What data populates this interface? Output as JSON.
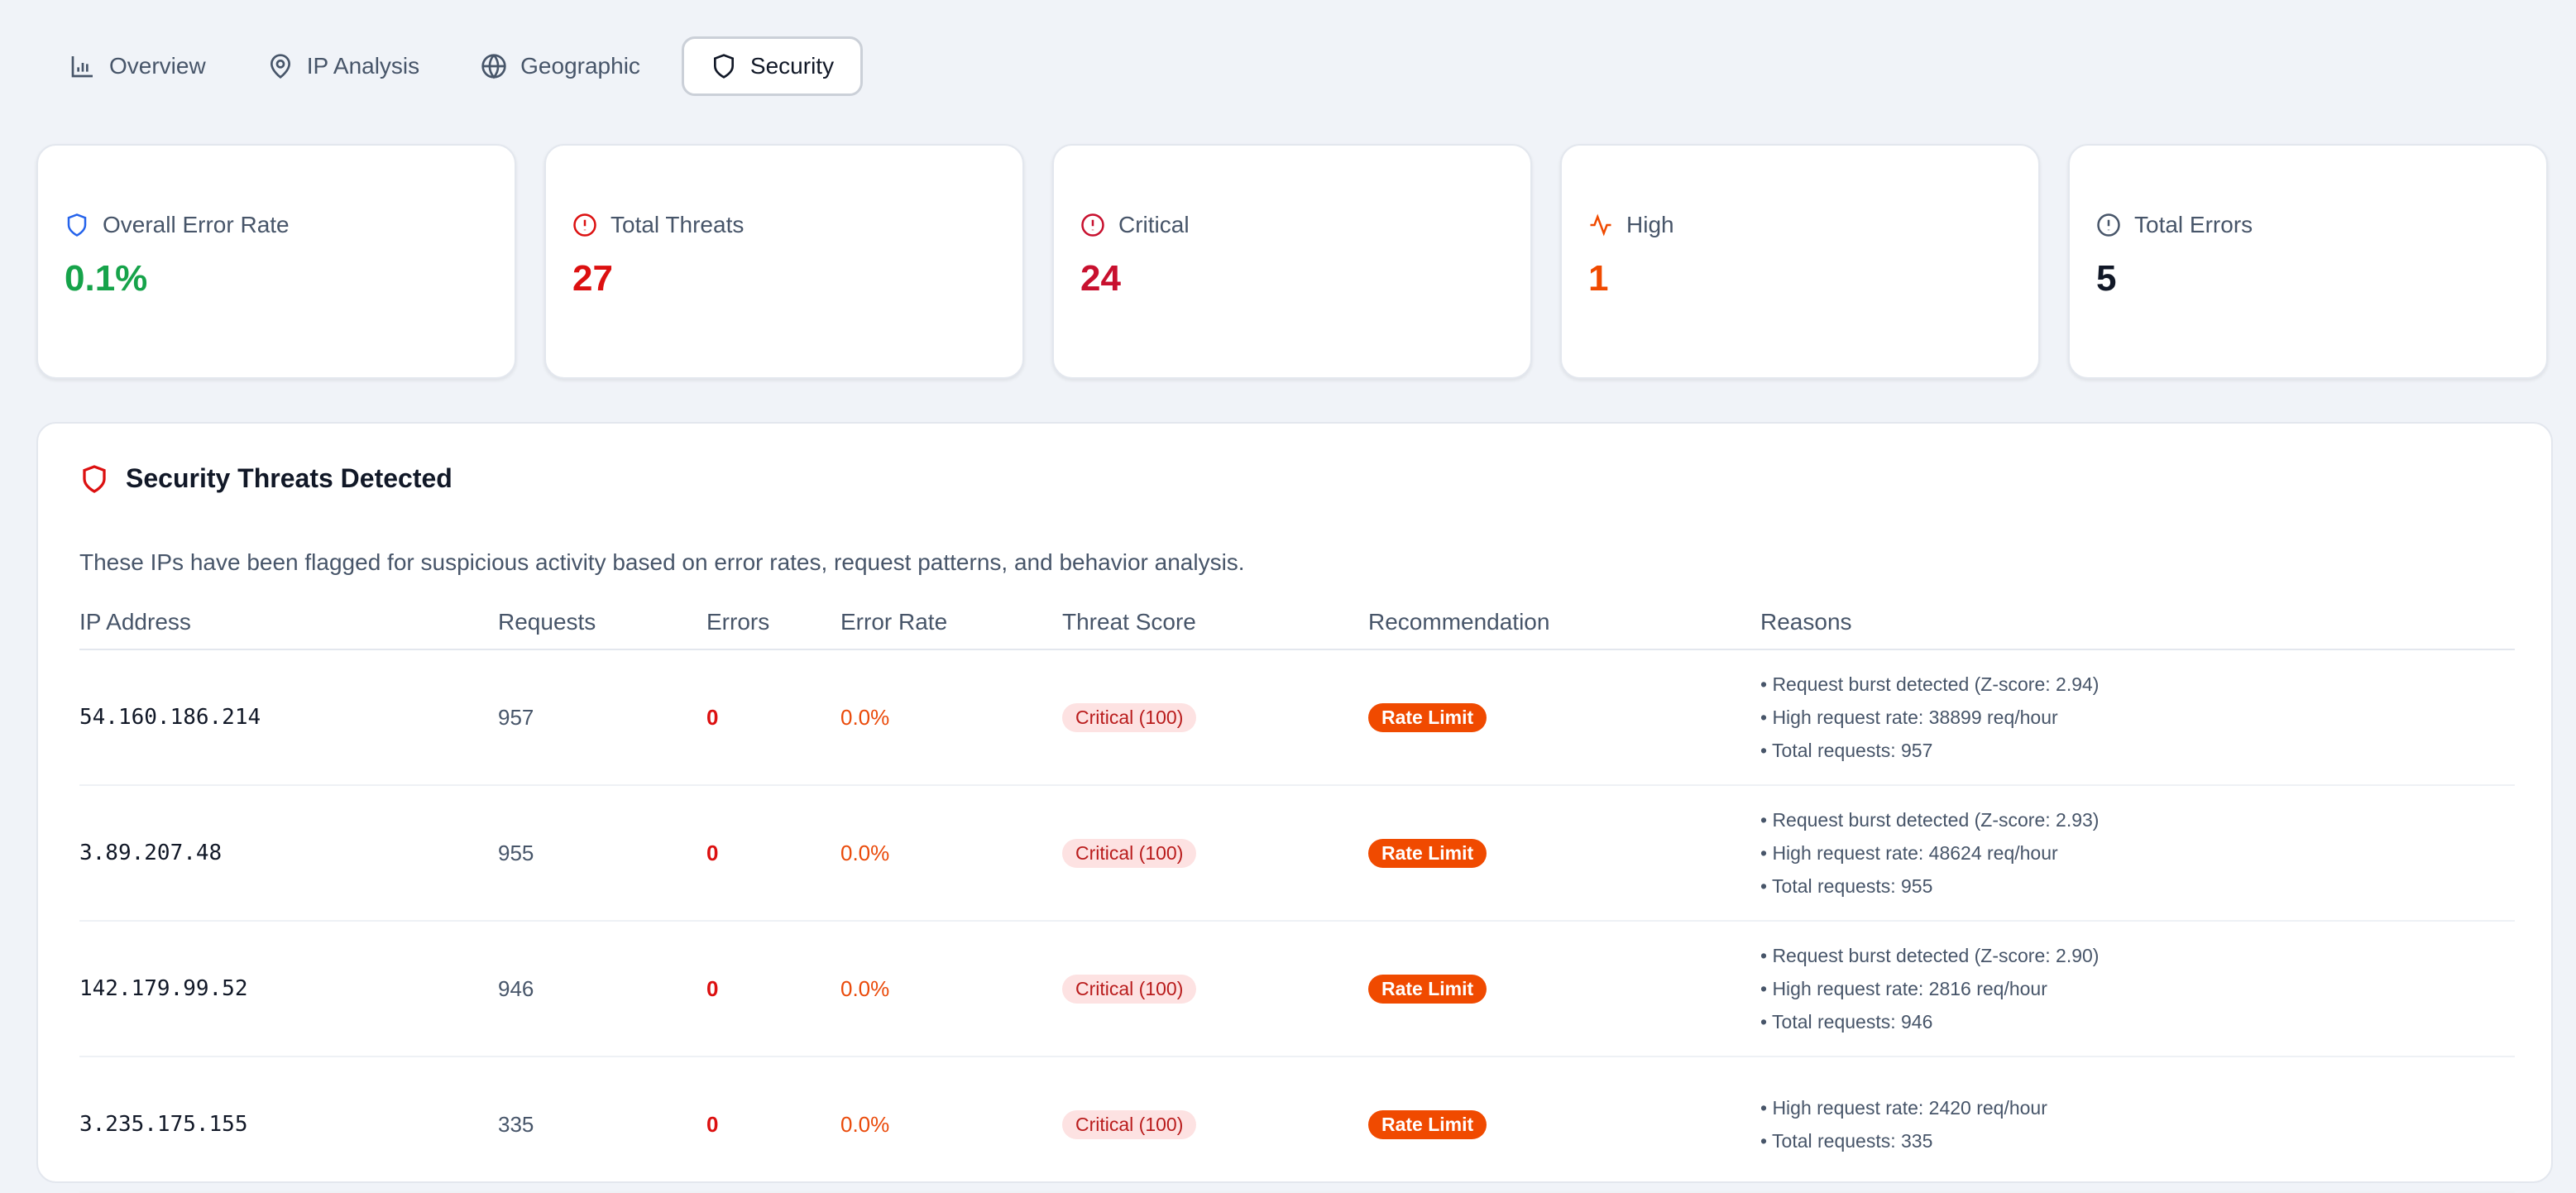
{
  "tabs": [
    {
      "label": "Overview",
      "icon": "bar-chart-icon"
    },
    {
      "label": "IP Analysis",
      "icon": "map-pin-icon"
    },
    {
      "label": "Geographic",
      "icon": "globe-icon"
    },
    {
      "label": "Security",
      "icon": "shield-icon",
      "active": true
    }
  ],
  "cards": [
    {
      "label": "Overall Error Rate",
      "value": "0.1%",
      "icon": "shield-icon",
      "color": "#16a34a",
      "icon_color": "#2563eb"
    },
    {
      "label": "Total Threats",
      "value": "27",
      "icon": "alert-circle-icon",
      "color": "#dc1010",
      "icon_color": "#dc1010"
    },
    {
      "label": "Critical",
      "value": "24",
      "icon": "alert-circle-icon",
      "color": "#c8102e",
      "icon_color": "#c8102e"
    },
    {
      "label": "High",
      "value": "1",
      "icon": "activity-icon",
      "color": "#f04a00",
      "icon_color": "#f04a00"
    },
    {
      "label": "Total Errors",
      "value": "5",
      "icon": "alert-circle-icon",
      "color": "#111827",
      "icon_color": "#475569"
    }
  ],
  "panel": {
    "title": "Security Threats Detected",
    "description": "These IPs have been flagged for suspicious activity based on error rates, request patterns, and behavior analysis.",
    "columns": [
      "IP Address",
      "Requests",
      "Errors",
      "Error Rate",
      "Threat Score",
      "Recommendation",
      "Reasons"
    ],
    "rows": [
      {
        "ip": "54.160.186.214",
        "requests": "957",
        "errors": "0",
        "error_rate": "0.0%",
        "threat": "Critical (100)",
        "rec": "Rate Limit",
        "reasons": [
          "• Request burst detected (Z-score: 2.94)",
          "• High request rate: 38899 req/hour",
          "• Total requests: 957"
        ]
      },
      {
        "ip": "3.89.207.48",
        "requests": "955",
        "errors": "0",
        "error_rate": "0.0%",
        "threat": "Critical (100)",
        "rec": "Rate Limit",
        "reasons": [
          "• Request burst detected (Z-score: 2.93)",
          "• High request rate: 48624 req/hour",
          "• Total requests: 955"
        ]
      },
      {
        "ip": "142.179.99.52",
        "requests": "946",
        "errors": "0",
        "error_rate": "0.0%",
        "threat": "Critical (100)",
        "rec": "Rate Limit",
        "reasons": [
          "• Request burst detected (Z-score: 2.90)",
          "• High request rate: 2816 req/hour",
          "• Total requests: 946"
        ]
      },
      {
        "ip": "3.235.175.155",
        "requests": "335",
        "errors": "0",
        "error_rate": "0.0%",
        "threat": "Critical (100)",
        "rec": "Rate Limit",
        "reasons": [
          "• High request rate: 2420 req/hour",
          "• Total requests: 335"
        ]
      }
    ]
  }
}
